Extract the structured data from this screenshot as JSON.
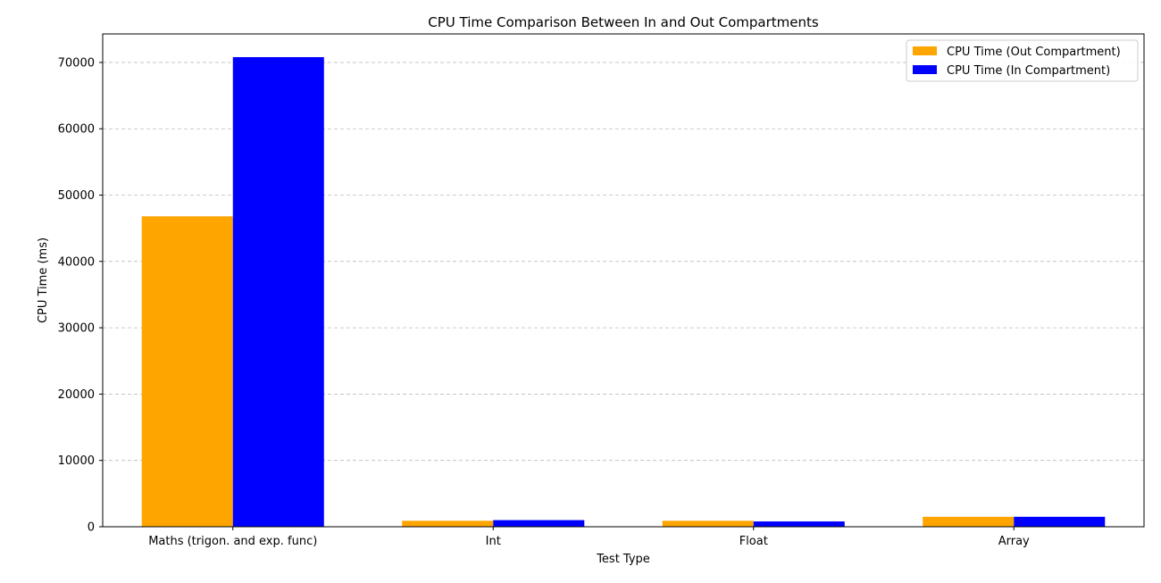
{
  "chart_data": {
    "type": "bar",
    "title": "CPU Time Comparison Between In and Out Compartments",
    "xlabel": "Test Type",
    "ylabel": "CPU Time (ms)",
    "categories": [
      "Maths (trigon. and exp. func)",
      "Int",
      "Float",
      "Array"
    ],
    "series": [
      {
        "name": "CPU Time (Out Compartment)",
        "color": "#FFA500",
        "values": [
          46800,
          900,
          900,
          1500
        ]
      },
      {
        "name": "CPU Time (In Compartment)",
        "color": "#0000FF",
        "values": [
          70800,
          1000,
          800,
          1500
        ]
      }
    ],
    "ylim": [
      0,
      74300
    ],
    "yticks": [
      0,
      10000,
      20000,
      30000,
      40000,
      50000,
      60000,
      70000
    ],
    "ytick_labels": [
      "0",
      "10000",
      "20000",
      "30000",
      "40000",
      "50000",
      "60000",
      "70000"
    ],
    "grid": "y-dashed",
    "legend_position": "top-right"
  }
}
